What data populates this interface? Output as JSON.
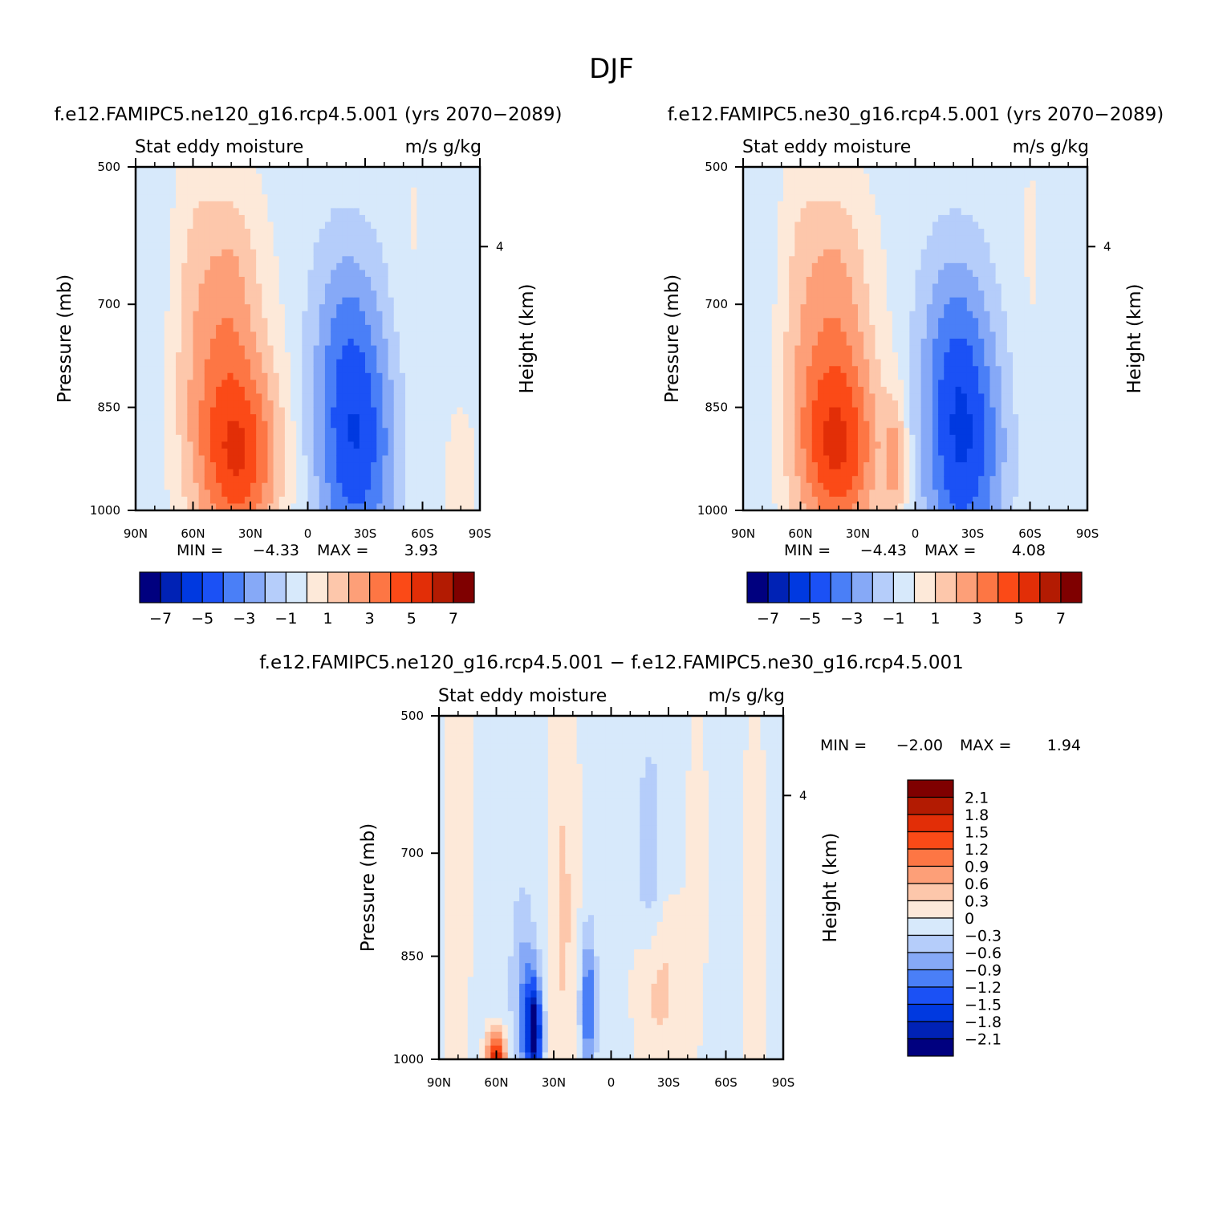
{
  "figure": {
    "title": "DJF",
    "diff_title": "f.e12.FAMIPC5.ne120_g16.rcp4.5.001 − f.e12.FAMIPC5.ne30_g16.rcp4.5.001"
  },
  "chart_data": [
    {
      "type": "heatmap",
      "id": "panel-ne120",
      "title": "f.e12.FAMIPC5.ne120_g16.rcp4.5.001 (yrs 2070−2089)",
      "left_subtitle": "Stat eddy moisture",
      "right_subtitle": "m/s g/kg",
      "ylabel": "Pressure (mb)",
      "ylabel_right": "Height (km)",
      "x_ticks": [
        "90N",
        "60N",
        "30N",
        "0",
        "30S",
        "60S",
        "90S"
      ],
      "x_range": [
        90,
        -90
      ],
      "y_ticks": [
        500,
        700,
        850,
        1000
      ],
      "y_range": [
        500,
        1000
      ],
      "right_ticks": [
        "4"
      ],
      "min_label": "MIN =",
      "min_value": "−4.33",
      "max_label": "MAX =",
      "max_value": "3.93",
      "levels": [
        -7,
        -6,
        -5,
        -4,
        -3,
        -2,
        -1,
        0,
        1,
        2,
        3,
        4,
        5,
        6,
        7
      ],
      "level_labels": [
        "−7",
        "−5",
        "−3",
        "−1",
        "1",
        "3",
        "5",
        "7"
      ],
      "field_features": [
        {
          "kind": "blob",
          "lat": -25,
          "p": 910,
          "lat_width": 22,
          "p_width": 190,
          "amp": -4.3
        },
        {
          "kind": "blob",
          "lat": -20,
          "p": 720,
          "lat_width": 18,
          "p_width": 150,
          "amp": -1.6
        },
        {
          "kind": "blob",
          "lat": 35,
          "p": 930,
          "lat_width": 22,
          "p_width": 140,
          "amp": 3.9
        },
        {
          "kind": "blob",
          "lat": 45,
          "p": 820,
          "lat_width": 25,
          "p_width": 220,
          "amp": 2.4
        },
        {
          "kind": "blob",
          "lat": 40,
          "p": 650,
          "lat_width": 15,
          "p_width": 150,
          "amp": 1.3
        },
        {
          "kind": "blob",
          "lat": 60,
          "p": 620,
          "lat_width": 12,
          "p_width": 220,
          "amp": 0.8
        },
        {
          "kind": "blob",
          "lat": -55,
          "p": 700,
          "lat_width": 12,
          "p_width": 400,
          "amp": 0.5
        },
        {
          "kind": "blob",
          "lat": -80,
          "p": 950,
          "lat_width": 8,
          "p_width": 100,
          "amp": 1.0
        },
        {
          "kind": "blob",
          "lat": 80,
          "p": 700,
          "lat_width": 10,
          "p_width": 400,
          "amp": -0.5
        }
      ],
      "background": -0.4
    },
    {
      "type": "heatmap",
      "id": "panel-ne30",
      "title": "f.e12.FAMIPC5.ne30_g16.rcp4.5.001 (yrs 2070−2089)",
      "left_subtitle": "Stat eddy moisture",
      "right_subtitle": "m/s g/kg",
      "ylabel": "Pressure (mb)",
      "ylabel_right": "Height (km)",
      "x_ticks": [
        "90N",
        "60N",
        "30N",
        "0",
        "30S",
        "60S",
        "90S"
      ],
      "x_range": [
        90,
        -90
      ],
      "y_ticks": [
        500,
        700,
        850,
        1000
      ],
      "y_range": [
        500,
        1000
      ],
      "right_ticks": [
        "4"
      ],
      "min_label": "MIN =",
      "min_value": "−4.43",
      "max_label": "MAX =",
      "max_value": "4.08",
      "levels": [
        -7,
        -6,
        -5,
        -4,
        -3,
        -2,
        -1,
        0,
        1,
        2,
        3,
        4,
        5,
        6,
        7
      ],
      "level_labels": [
        "−7",
        "−5",
        "−3",
        "−1",
        "1",
        "3",
        "5",
        "7"
      ],
      "field_features": [
        {
          "kind": "blob",
          "lat": -25,
          "p": 910,
          "lat_width": 22,
          "p_width": 190,
          "amp": -4.4
        },
        {
          "kind": "blob",
          "lat": -20,
          "p": 730,
          "lat_width": 18,
          "p_width": 150,
          "amp": -1.6
        },
        {
          "kind": "blob",
          "lat": 40,
          "p": 920,
          "lat_width": 22,
          "p_width": 140,
          "amp": 4.0
        },
        {
          "kind": "blob",
          "lat": 45,
          "p": 800,
          "lat_width": 25,
          "p_width": 220,
          "amp": 2.2
        },
        {
          "kind": "blob",
          "lat": 40,
          "p": 650,
          "lat_width": 15,
          "p_width": 150,
          "amp": 1.2
        },
        {
          "kind": "blob",
          "lat": 10,
          "p": 930,
          "lat_width": 6,
          "p_width": 90,
          "amp": 2.5
        },
        {
          "kind": "blob",
          "lat": 60,
          "p": 620,
          "lat_width": 12,
          "p_width": 220,
          "amp": 0.8
        },
        {
          "kind": "blob",
          "lat": -60,
          "p": 700,
          "lat_width": 12,
          "p_width": 400,
          "amp": 0.5
        },
        {
          "kind": "blob",
          "lat": 80,
          "p": 700,
          "lat_width": 10,
          "p_width": 400,
          "amp": -0.5
        }
      ],
      "background": -0.4
    },
    {
      "type": "heatmap",
      "id": "panel-diff",
      "left_subtitle": "Stat eddy moisture",
      "right_subtitle": "m/s g/kg",
      "ylabel": "Pressure (mb)",
      "ylabel_right": "Height (km)",
      "x_ticks": [
        "90N",
        "60N",
        "30N",
        "0",
        "30S",
        "60S",
        "90S"
      ],
      "x_range": [
        90,
        -90
      ],
      "y_ticks": [
        500,
        700,
        850,
        1000
      ],
      "y_range": [
        500,
        1000
      ],
      "right_ticks": [
        "4"
      ],
      "min_label": "MIN =",
      "min_value": "−2.00",
      "max_label": "MAX =",
      "max_value": "1.94",
      "levels": [
        -2.1,
        -1.8,
        -1.5,
        -1.2,
        -0.9,
        -0.6,
        -0.3,
        0,
        0.3,
        0.6,
        0.9,
        1.2,
        1.5,
        1.8,
        2.1
      ],
      "level_labels": [
        "2.1",
        "1.8",
        "1.5",
        "1.2",
        "0.9",
        "0.6",
        "0.3",
        "0",
        "−0.3",
        "−0.6",
        "−0.9",
        "−1.2",
        "−1.5",
        "−1.8",
        "−2.1"
      ],
      "field_features": [
        {
          "kind": "blob",
          "lat": 80,
          "p": 700,
          "lat_width": 8,
          "p_width": 500,
          "amp": 0.25
        },
        {
          "kind": "blob",
          "lat": 55,
          "p": 800,
          "lat_width": 12,
          "p_width": 500,
          "amp": -0.15
        },
        {
          "kind": "blob",
          "lat": 40,
          "p": 960,
          "lat_width": 4,
          "p_width": 80,
          "amp": -2.0
        },
        {
          "kind": "blob",
          "lat": 45,
          "p": 930,
          "lat_width": 5,
          "p_width": 130,
          "amp": -0.8
        },
        {
          "kind": "blob",
          "lat": 25,
          "p": 780,
          "lat_width": 8,
          "p_width": 350,
          "amp": 0.45
        },
        {
          "kind": "blob",
          "lat": 12,
          "p": 920,
          "lat_width": 4,
          "p_width": 100,
          "amp": -1.2
        },
        {
          "kind": "blob",
          "lat": -20,
          "p": 700,
          "lat_width": 6,
          "p_width": 150,
          "amp": -0.5
        },
        {
          "kind": "blob",
          "lat": -25,
          "p": 900,
          "lat_width": 12,
          "p_width": 120,
          "amp": 0.5
        },
        {
          "kind": "blob",
          "lat": 60,
          "p": 995,
          "lat_width": 5,
          "p_width": 40,
          "amp": 1.9
        },
        {
          "kind": "blob",
          "lat": -45,
          "p": 700,
          "lat_width": 8,
          "p_width": 400,
          "amp": 0.15
        },
        {
          "kind": "blob",
          "lat": -75,
          "p": 800,
          "lat_width": 8,
          "p_width": 400,
          "amp": 0.2
        }
      ],
      "background": -0.1
    }
  ],
  "colors": {
    "palette": [
      "#00007f",
      "#0022b5",
      "#0039e0",
      "#1b51f5",
      "#4a7ff7",
      "#86a9f7",
      "#b5cdfa",
      "#d7e9fb",
      "#fde9d9",
      "#fdc7ab",
      "#fd9f78",
      "#fd7644",
      "#fb4a17",
      "#e22e07",
      "#b31b02",
      "#7f0000"
    ]
  }
}
